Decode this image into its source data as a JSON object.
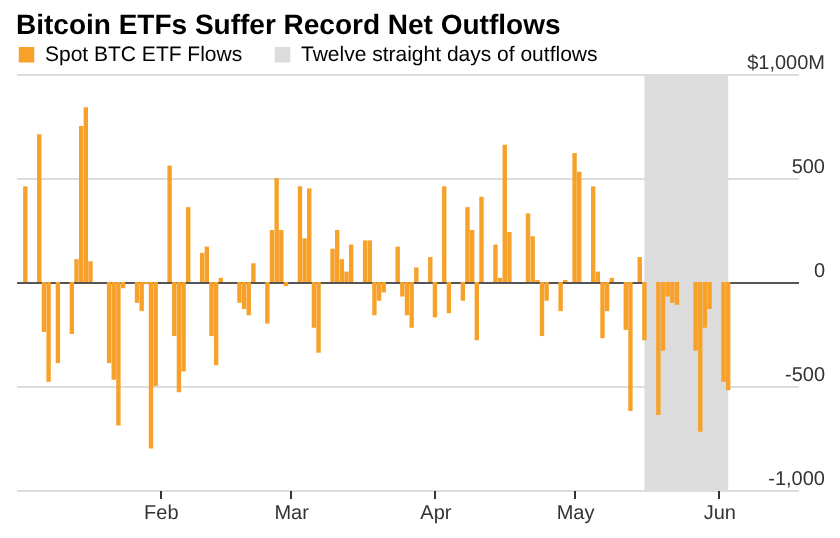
{
  "chart_data": {
    "type": "bar",
    "title": "Bitcoin ETFs Suffer Record Net Outflows",
    "x": [
      "--01-03",
      "--01-06",
      "--01-07",
      "--01-08",
      "--01-10",
      "--01-13",
      "--01-14",
      "--01-15",
      "--01-16",
      "--01-17",
      "--01-21",
      "--01-22",
      "--01-23",
      "--01-24",
      "--01-27",
      "--01-28",
      "--01-29",
      "--01-30",
      "--01-31",
      "--02-03",
      "--02-04",
      "--02-05",
      "--02-06",
      "--02-07",
      "--02-10",
      "--02-11",
      "--02-12",
      "--02-13",
      "--02-14",
      "--02-18",
      "--02-19",
      "--02-20",
      "--02-21",
      "--02-24",
      "--02-25",
      "--02-26",
      "--02-27",
      "--02-28",
      "--03-03",
      "--03-04",
      "--03-05",
      "--03-06",
      "--03-07",
      "--03-10",
      "--03-11",
      "--03-12",
      "--03-13",
      "--03-14",
      "--03-17",
      "--03-18",
      "--03-19",
      "--03-20",
      "--03-21",
      "--03-24",
      "--03-25",
      "--03-26",
      "--03-27",
      "--03-28",
      "--03-31",
      "--04-01",
      "--04-03",
      "--04-04",
      "--04-07",
      "--04-08",
      "--04-09",
      "--04-10",
      "--04-11",
      "--04-14",
      "--04-15",
      "--04-16",
      "--04-17",
      "--04-21",
      "--04-22",
      "--04-23",
      "--04-24",
      "--04-25",
      "--04-28",
      "--04-29",
      "--05-01",
      "--05-02",
      "--05-05",
      "--05-06",
      "--05-07",
      "--05-08",
      "--05-09",
      "--05-12",
      "--05-13",
      "--05-15",
      "--05-16",
      "--05-19",
      "--05-20",
      "--05-21",
      "--05-22",
      "--05-23",
      "--05-27",
      "--05-28",
      "--05-29",
      "--05-30",
      "--06-02",
      "--06-03"
    ],
    "series": [
      {
        "name": "Spot BTC ETF Flows",
        "color": "#f7a12b",
        "values": [
          460,
          710,
          -240,
          -480,
          -390,
          -250,
          110,
          750,
          840,
          100,
          -390,
          -470,
          -690,
          -30,
          -100,
          -140,
          -10,
          -800,
          -500,
          560,
          -260,
          -530,
          -430,
          360,
          140,
          170,
          -260,
          -400,
          20,
          -100,
          -130,
          -160,
          90,
          -200,
          250,
          500,
          250,
          -20,
          460,
          210,
          450,
          -220,
          -340,
          160,
          250,
          110,
          50,
          180,
          200,
          200,
          -160,
          -90,
          -50,
          170,
          -70,
          -160,
          -220,
          70,
          120,
          -170,
          460,
          -150,
          -90,
          360,
          250,
          -280,
          410,
          180,
          20,
          660,
          240,
          330,
          220,
          10,
          -260,
          -90,
          -140,
          10,
          620,
          530,
          460,
          50,
          -270,
          -140,
          20,
          -230,
          -620,
          120,
          -280,
          -640,
          -330,
          -70,
          -100,
          -110,
          -330,
          -720,
          -220,
          -130,
          -480,
          -520
        ]
      }
    ],
    "xlim": [
      "--01-01",
      "--06-18"
    ],
    "xticks": [
      {
        "value": "--02-01",
        "label": "Feb"
      },
      {
        "value": "--03-01",
        "label": "Mar"
      },
      {
        "value": "--04-01",
        "label": "Apr"
      },
      {
        "value": "--05-01",
        "label": "May"
      },
      {
        "value": "--06-01",
        "label": "Jun"
      }
    ],
    "ylim": [
      -1000,
      1000
    ],
    "yticks": [
      {
        "value": -1000,
        "label": "-1,000"
      },
      -500,
      0,
      500,
      {
        "value": 1000,
        "label": "$1,000M"
      }
    ],
    "bands": [
      {
        "axis": "x",
        "from": "--05-16",
        "to": "--06-03",
        "label": "Twelve straight days of outflows",
        "color": "#dcdcdc"
      }
    ],
    "grid": "y",
    "legend": "top left"
  }
}
